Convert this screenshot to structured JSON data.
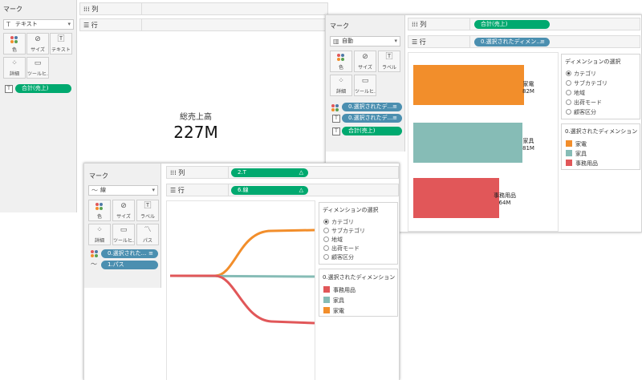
{
  "colors": {
    "orange": "#f28e2b",
    "teal": "#86bcb6",
    "red": "#e15759",
    "green_pill": "#00a96f",
    "blue_pill": "#4b8fb0"
  },
  "win1": {
    "marks_title": "マーク",
    "mark_type": "テキスト",
    "tiles": [
      "色",
      "サイズ",
      "テキスト",
      "詳細",
      "ツールヒ..."
    ],
    "pill": "合計(売上)",
    "col_label": "列",
    "row_label": "行",
    "kpi_title": "総売上高",
    "kpi_value": "227M"
  },
  "win2": {
    "marks_title": "マーク",
    "mark_type": "自動",
    "tiles": [
      "色",
      "サイズ",
      "ラベル",
      "詳細",
      "ツールヒ..."
    ],
    "pills": [
      "0.選択されたデ...",
      "0.選択されたデ...",
      "合計(売上)"
    ],
    "col_label": "列",
    "row_label": "行",
    "col_pill": "合計(売上)",
    "row_pill": "0.選択されたディメン...",
    "param_title": "ディメンションの選択",
    "param_options": [
      "カテゴリ",
      "サブカテゴリ",
      "地域",
      "出荷モード",
      "顧客区分"
    ],
    "legend_title": "0.選択されたディメンション",
    "legend_items": [
      "家電",
      "家具",
      "事務用品"
    ]
  },
  "chart_data": {
    "type": "bar",
    "categories": [
      "家電",
      "家具",
      "事務用品"
    ],
    "values": [
      82,
      81,
      64
    ],
    "labels": [
      "82M",
      "81M",
      "64M"
    ]
  },
  "win3": {
    "marks_title": "マーク",
    "mark_type": "線",
    "tiles": [
      "色",
      "サイズ",
      "ラベル",
      "詳細",
      "ツールヒ...",
      "パス"
    ],
    "pills": [
      "0.選択された...",
      "1.パス"
    ],
    "col_label": "列",
    "row_label": "行",
    "col_pill": "2.T",
    "row_pill": "6.線",
    "param_title": "ディメンションの選択",
    "param_options": [
      "カテゴリ",
      "サブカテゴリ",
      "地域",
      "出荷モード",
      "顧客区分"
    ],
    "legend_title": "0.選択されたディメンション",
    "legend_items": [
      "事務用品",
      "家具",
      "家電"
    ]
  }
}
